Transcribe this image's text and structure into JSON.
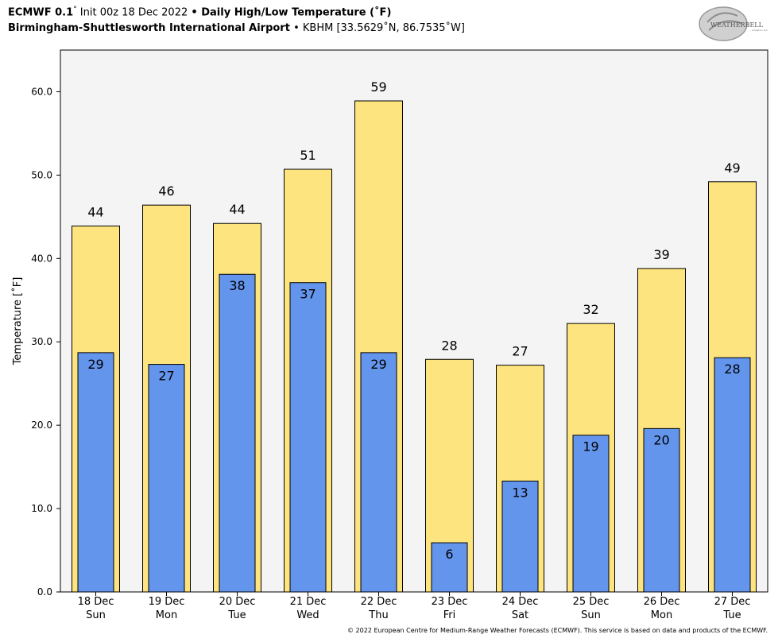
{
  "header": {
    "model": "ECMWF 0.1",
    "deg": "°",
    "init": " Init 00z 18 Dec 2022 ",
    "bullet1": "•",
    "product": " Daily High/Low Temperature (˚F)",
    "station": "Birmingham-Shuttlesworth International Airport",
    "bullet2": " • ",
    "station_info": "KBHM [33.5629˚N, 86.7535˚W]"
  },
  "logo": {
    "text": "WEATHERBELL",
    "subtext": "Analytics LLC"
  },
  "copyright": "© 2022 European Centre for Medium-Range Weather Forecasts (ECMWF). This service is based on data and products of the ECMWF.",
  "colors": {
    "high": "#fee47e",
    "low": "#6495ed",
    "plot_bg": "#f4f4f4"
  },
  "chart_data": {
    "type": "bar",
    "ylabel": "Temperature [˚F]",
    "ylim": [
      0,
      65
    ],
    "yticks": [
      "0.0",
      "10.0",
      "20.0",
      "30.0",
      "40.0",
      "50.0",
      "60.0"
    ],
    "categories": [
      [
        "18 Dec",
        "Sun"
      ],
      [
        "19 Dec",
        "Mon"
      ],
      [
        "20 Dec",
        "Tue"
      ],
      [
        "21 Dec",
        "Wed"
      ],
      [
        "22 Dec",
        "Thu"
      ],
      [
        "23 Dec",
        "Fri"
      ],
      [
        "24 Dec",
        "Sat"
      ],
      [
        "25 Dec",
        "Sun"
      ],
      [
        "26 Dec",
        "Mon"
      ],
      [
        "27 Dec",
        "Tue"
      ]
    ],
    "series": [
      {
        "values": [
          43.9,
          46.4,
          44.2,
          50.7,
          58.9,
          27.9,
          27.2,
          32.2,
          38.8,
          49.2
        ],
        "labels": [
          "44",
          "46",
          "44",
          "51",
          "59",
          "28",
          "27",
          "32",
          "39",
          "49"
        ]
      },
      {
        "values": [
          28.7,
          27.3,
          38.1,
          37.1,
          28.7,
          5.9,
          13.3,
          18.8,
          19.6,
          28.1
        ],
        "labels": [
          "29",
          "27",
          "38",
          "37",
          "29",
          "6",
          "13",
          "19",
          "20",
          "28"
        ]
      }
    ]
  }
}
